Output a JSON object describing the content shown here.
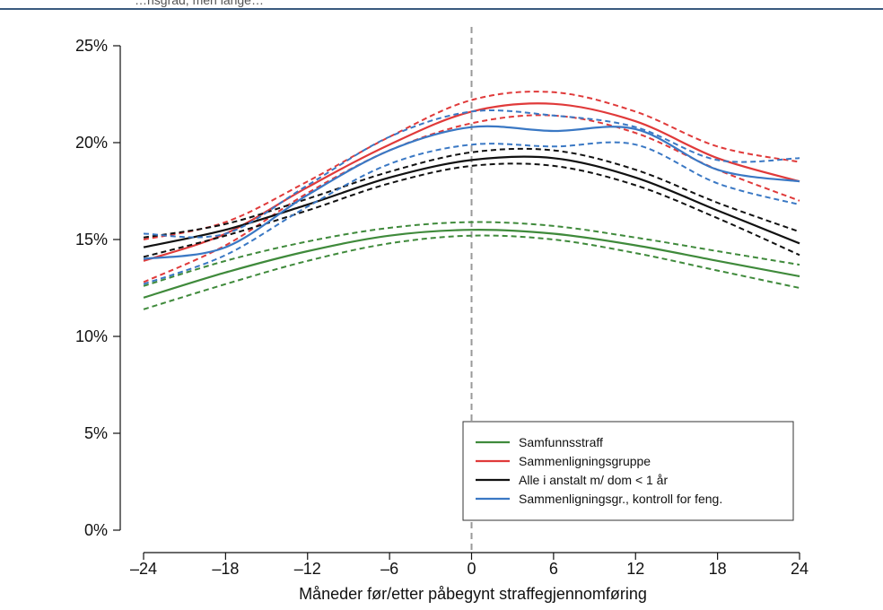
{
  "header": {
    "cropped_text": "…nsgrad, men lange…"
  },
  "colors": {
    "top_rule": "#3a5a7e",
    "vline": "#999999"
  },
  "chart_data": {
    "type": "line",
    "xlabel": "Måneder før/etter påbegynt straffegjennomføring",
    "ylabel": "",
    "xlim": [
      -24,
      24
    ],
    "ylim": [
      0,
      25
    ],
    "x_ticks": [
      -24,
      -18,
      -12,
      -6,
      0,
      6,
      12,
      18,
      24
    ],
    "x_tick_labels": [
      "–24",
      "–18",
      "–12",
      "–6",
      "0",
      "6",
      "12",
      "18",
      "24"
    ],
    "y_ticks": [
      0,
      5,
      10,
      15,
      20,
      25
    ],
    "y_tick_labels": [
      "0%",
      "5%",
      "10%",
      "15%",
      "20%",
      "25%"
    ],
    "vline_x": 0,
    "legend_position": "bottom-right",
    "series": [
      {
        "name": "Samfunnsstraff",
        "color": "#3f8a3b",
        "x": [
          -24,
          -18,
          -12,
          -6,
          0,
          6,
          12,
          18,
          24
        ],
        "values": [
          12.0,
          13.3,
          14.4,
          15.2,
          15.5,
          15.3,
          14.7,
          13.9,
          13.1
        ],
        "upper": [
          12.6,
          13.9,
          14.9,
          15.6,
          15.9,
          15.7,
          15.1,
          14.4,
          13.7
        ],
        "lower": [
          11.4,
          12.7,
          13.9,
          14.8,
          15.2,
          15.0,
          14.3,
          13.4,
          12.5
        ]
      },
      {
        "name": "Sammenligningsgruppe",
        "color": "#e03a3a",
        "x": [
          -24,
          -18,
          -12,
          -6,
          0,
          6,
          12,
          18,
          24
        ],
        "values": [
          13.9,
          15.3,
          17.7,
          19.9,
          21.6,
          22.0,
          21.1,
          19.2,
          18.0
        ],
        "upper": [
          15.0,
          15.9,
          18.0,
          20.3,
          22.2,
          22.6,
          21.6,
          19.8,
          19.0
        ],
        "lower": [
          12.8,
          14.7,
          17.4,
          19.6,
          21.0,
          21.4,
          20.5,
          18.6,
          17.0
        ]
      },
      {
        "name": "Alle i anstalt m/ dom < 1 år",
        "color": "#111111",
        "x": [
          -24,
          -18,
          -12,
          -6,
          0,
          6,
          12,
          18,
          24
        ],
        "values": [
          14.6,
          15.5,
          16.8,
          18.2,
          19.1,
          19.2,
          18.2,
          16.5,
          14.8
        ],
        "upper": [
          15.1,
          15.8,
          17.1,
          18.5,
          19.5,
          19.6,
          18.6,
          16.9,
          15.4
        ],
        "lower": [
          14.1,
          15.2,
          16.5,
          17.9,
          18.8,
          18.8,
          17.8,
          16.1,
          14.2
        ]
      },
      {
        "name": "Sammenligningsgr., kontroll for feng.",
        "color": "#3a78c4",
        "x": [
          -24,
          -18,
          -12,
          -6,
          0,
          6,
          12,
          18,
          24
        ],
        "values": [
          14.0,
          14.6,
          17.3,
          19.6,
          20.8,
          20.6,
          20.7,
          18.6,
          18.0
        ],
        "upper": [
          15.3,
          15.3,
          17.8,
          20.3,
          21.6,
          21.4,
          20.8,
          19.1,
          19.2
        ],
        "lower": [
          12.7,
          14.2,
          16.7,
          18.9,
          19.9,
          19.8,
          19.9,
          17.9,
          16.8
        ]
      }
    ]
  }
}
